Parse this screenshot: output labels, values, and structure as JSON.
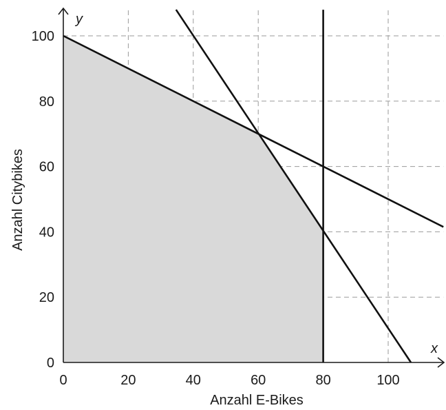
{
  "chart_data": {
    "type": "line",
    "xlabel": "Anzahl E-Bikes",
    "ylabel": "Anzahl Citybikes",
    "x_var": "x",
    "y_var": "y",
    "xlim": [
      0,
      117
    ],
    "ylim": [
      0,
      108
    ],
    "x_ticks": [
      0,
      20,
      40,
      60,
      80,
      100
    ],
    "y_ticks": [
      0,
      20,
      40,
      60,
      80,
      100
    ],
    "x_tick_labels": [
      "0",
      "20",
      "40",
      "60",
      "80",
      "100"
    ],
    "y_tick_labels": [
      "0",
      "20",
      "40",
      "60",
      "80",
      "100"
    ],
    "grid": true,
    "series": [
      {
        "points": [
          [
            0,
            100
          ],
          [
            117,
            41.5
          ]
        ]
      },
      {
        "points": [
          [
            34.7,
            108
          ],
          [
            107,
            0
          ]
        ]
      },
      {
        "points": [
          [
            80,
            0
          ],
          [
            80,
            108
          ]
        ]
      }
    ],
    "feasible_region": [
      [
        0,
        0
      ],
      [
        80,
        0
      ],
      [
        80,
        40
      ],
      [
        60,
        70
      ],
      [
        0,
        100
      ]
    ],
    "colors": {
      "region_fill": "#d9d9d9",
      "line": "#111111",
      "grid": "#9a9a9a"
    }
  }
}
